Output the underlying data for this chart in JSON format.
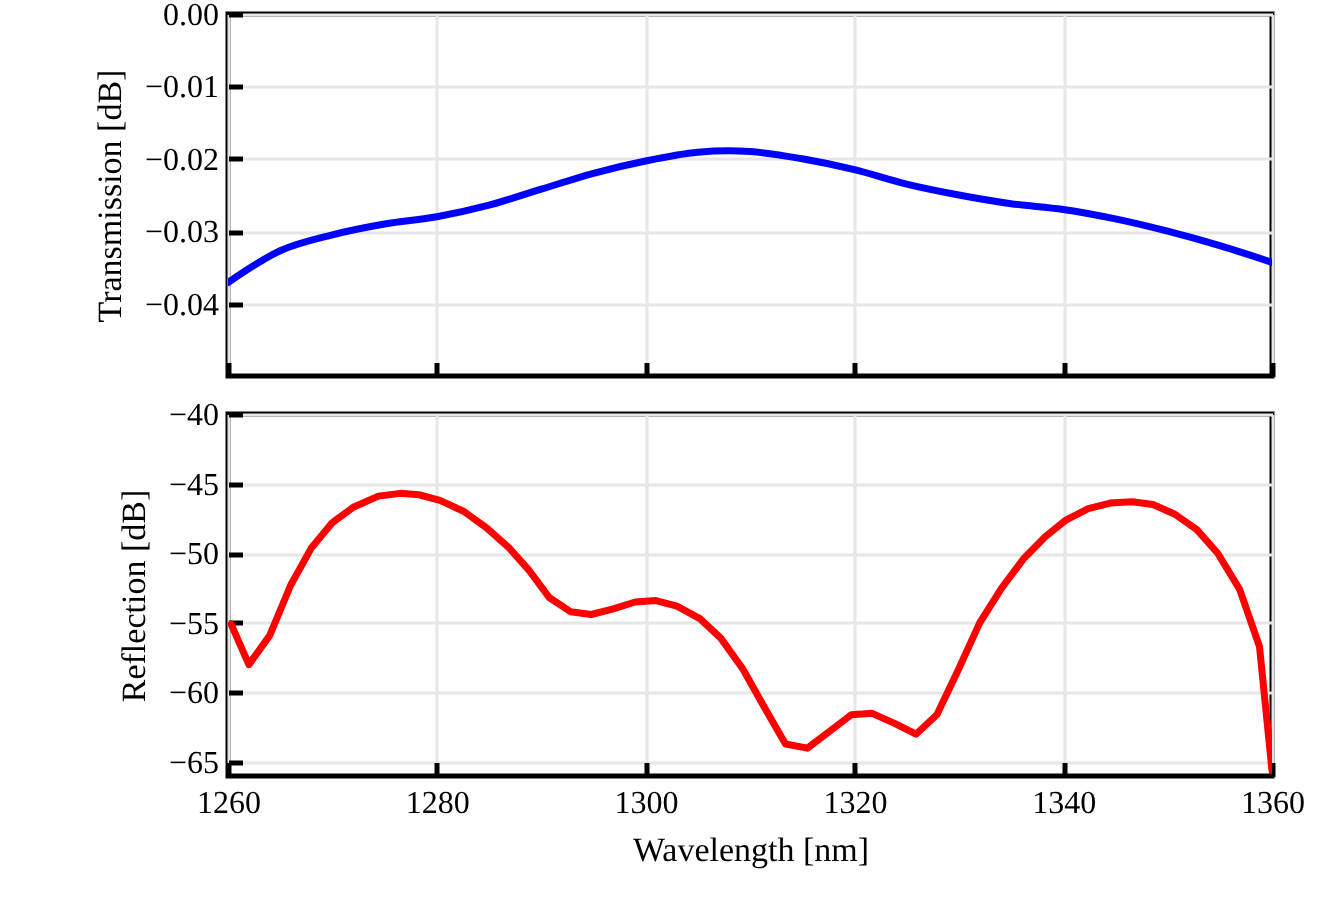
{
  "chart_data": [
    {
      "type": "line",
      "ylabel": "Transmission [dB]",
      "xlim": [
        1260,
        1360
      ],
      "xticks": [
        1260,
        1280,
        1300,
        1320,
        1340,
        1360
      ],
      "ylim": [
        -0.05,
        0
      ],
      "yticks": [
        {
          "value": 0,
          "label": "0.00"
        },
        {
          "value": -0.01,
          "label": "−0.01"
        },
        {
          "value": -0.02,
          "label": "−0.02"
        },
        {
          "value": -0.03,
          "label": "−0.03"
        },
        {
          "value": -0.04,
          "label": "−0.04"
        }
      ],
      "grid": true,
      "tick_labels": "y",
      "x": [
        1260,
        1265,
        1270,
        1275,
        1280,
        1285,
        1290,
        1295,
        1300,
        1305,
        1308,
        1310,
        1315,
        1320,
        1325,
        1330,
        1335,
        1340,
        1345,
        1350,
        1355,
        1360
      ],
      "series": [
        {
          "color": "#0000ff",
          "values": [
            -0.0371,
            -0.0327,
            -0.0305,
            -0.029,
            -0.028,
            -0.0264,
            -0.0242,
            -0.022,
            -0.0203,
            -0.0191,
            -0.0189,
            -0.019,
            -0.02,
            -0.0215,
            -0.0235,
            -0.025,
            -0.0262,
            -0.027,
            -0.0283,
            -0.03,
            -0.032,
            -0.0343
          ]
        }
      ]
    },
    {
      "type": "line",
      "xlabel": "Wavelength [nm]",
      "ylabel": "Reflection [dB]",
      "xlim": [
        1260,
        1360
      ],
      "xticks": [
        1260,
        1280,
        1300,
        1320,
        1340,
        1360
      ],
      "ylim": [
        -66,
        -40
      ],
      "yticks": [
        {
          "value": -40,
          "label": "−40"
        },
        {
          "value": -45,
          "label": "−45"
        },
        {
          "value": -50,
          "label": "−50"
        },
        {
          "value": -55,
          "label": "−55"
        },
        {
          "value": -60,
          "label": "−60"
        },
        {
          "value": -65,
          "label": "−65"
        }
      ],
      "grid": true,
      "x": [
        1260.3,
        1262,
        1264,
        1266,
        1268,
        1270,
        1272,
        1274.4,
        1276.5,
        1278.3,
        1280.3,
        1282.6,
        1284.8,
        1286.9,
        1288.8,
        1290.8,
        1292.8,
        1294.8,
        1296.9,
        1299,
        1301,
        1303,
        1305.2,
        1307.2,
        1309.3,
        1311.4,
        1313.4,
        1315.5,
        1317.6,
        1319.7,
        1321.7,
        1323.8,
        1325.9,
        1327.9,
        1330,
        1332,
        1334.1,
        1336.2,
        1338.3,
        1340.3,
        1342.4,
        1344.5,
        1346.6,
        1348.6,
        1350.7,
        1352.8,
        1354.8,
        1356.9,
        1358.8,
        1360
      ],
      "series": [
        {
          "color": "#ff0000",
          "values": [
            -55.1,
            -58.0,
            -55.9,
            -52.3,
            -49.6,
            -47.8,
            -46.7,
            -45.9,
            -45.7,
            -45.8,
            -46.2,
            -47.0,
            -48.2,
            -49.6,
            -51.2,
            -53.2,
            -54.2,
            -54.4,
            -54.0,
            -53.5,
            -53.4,
            -53.8,
            -54.7,
            -56.1,
            -58.3,
            -61.1,
            -63.7,
            -64.0,
            -62.8,
            -61.6,
            -61.5,
            -62.2,
            -63.0,
            -61.6,
            -58.3,
            -55.0,
            -52.5,
            -50.4,
            -48.8,
            -47.6,
            -46.8,
            -46.4,
            -46.3,
            -46.5,
            -47.2,
            -48.3,
            -50.0,
            -52.6,
            -56.7,
            -65.6
          ]
        }
      ]
    }
  ]
}
